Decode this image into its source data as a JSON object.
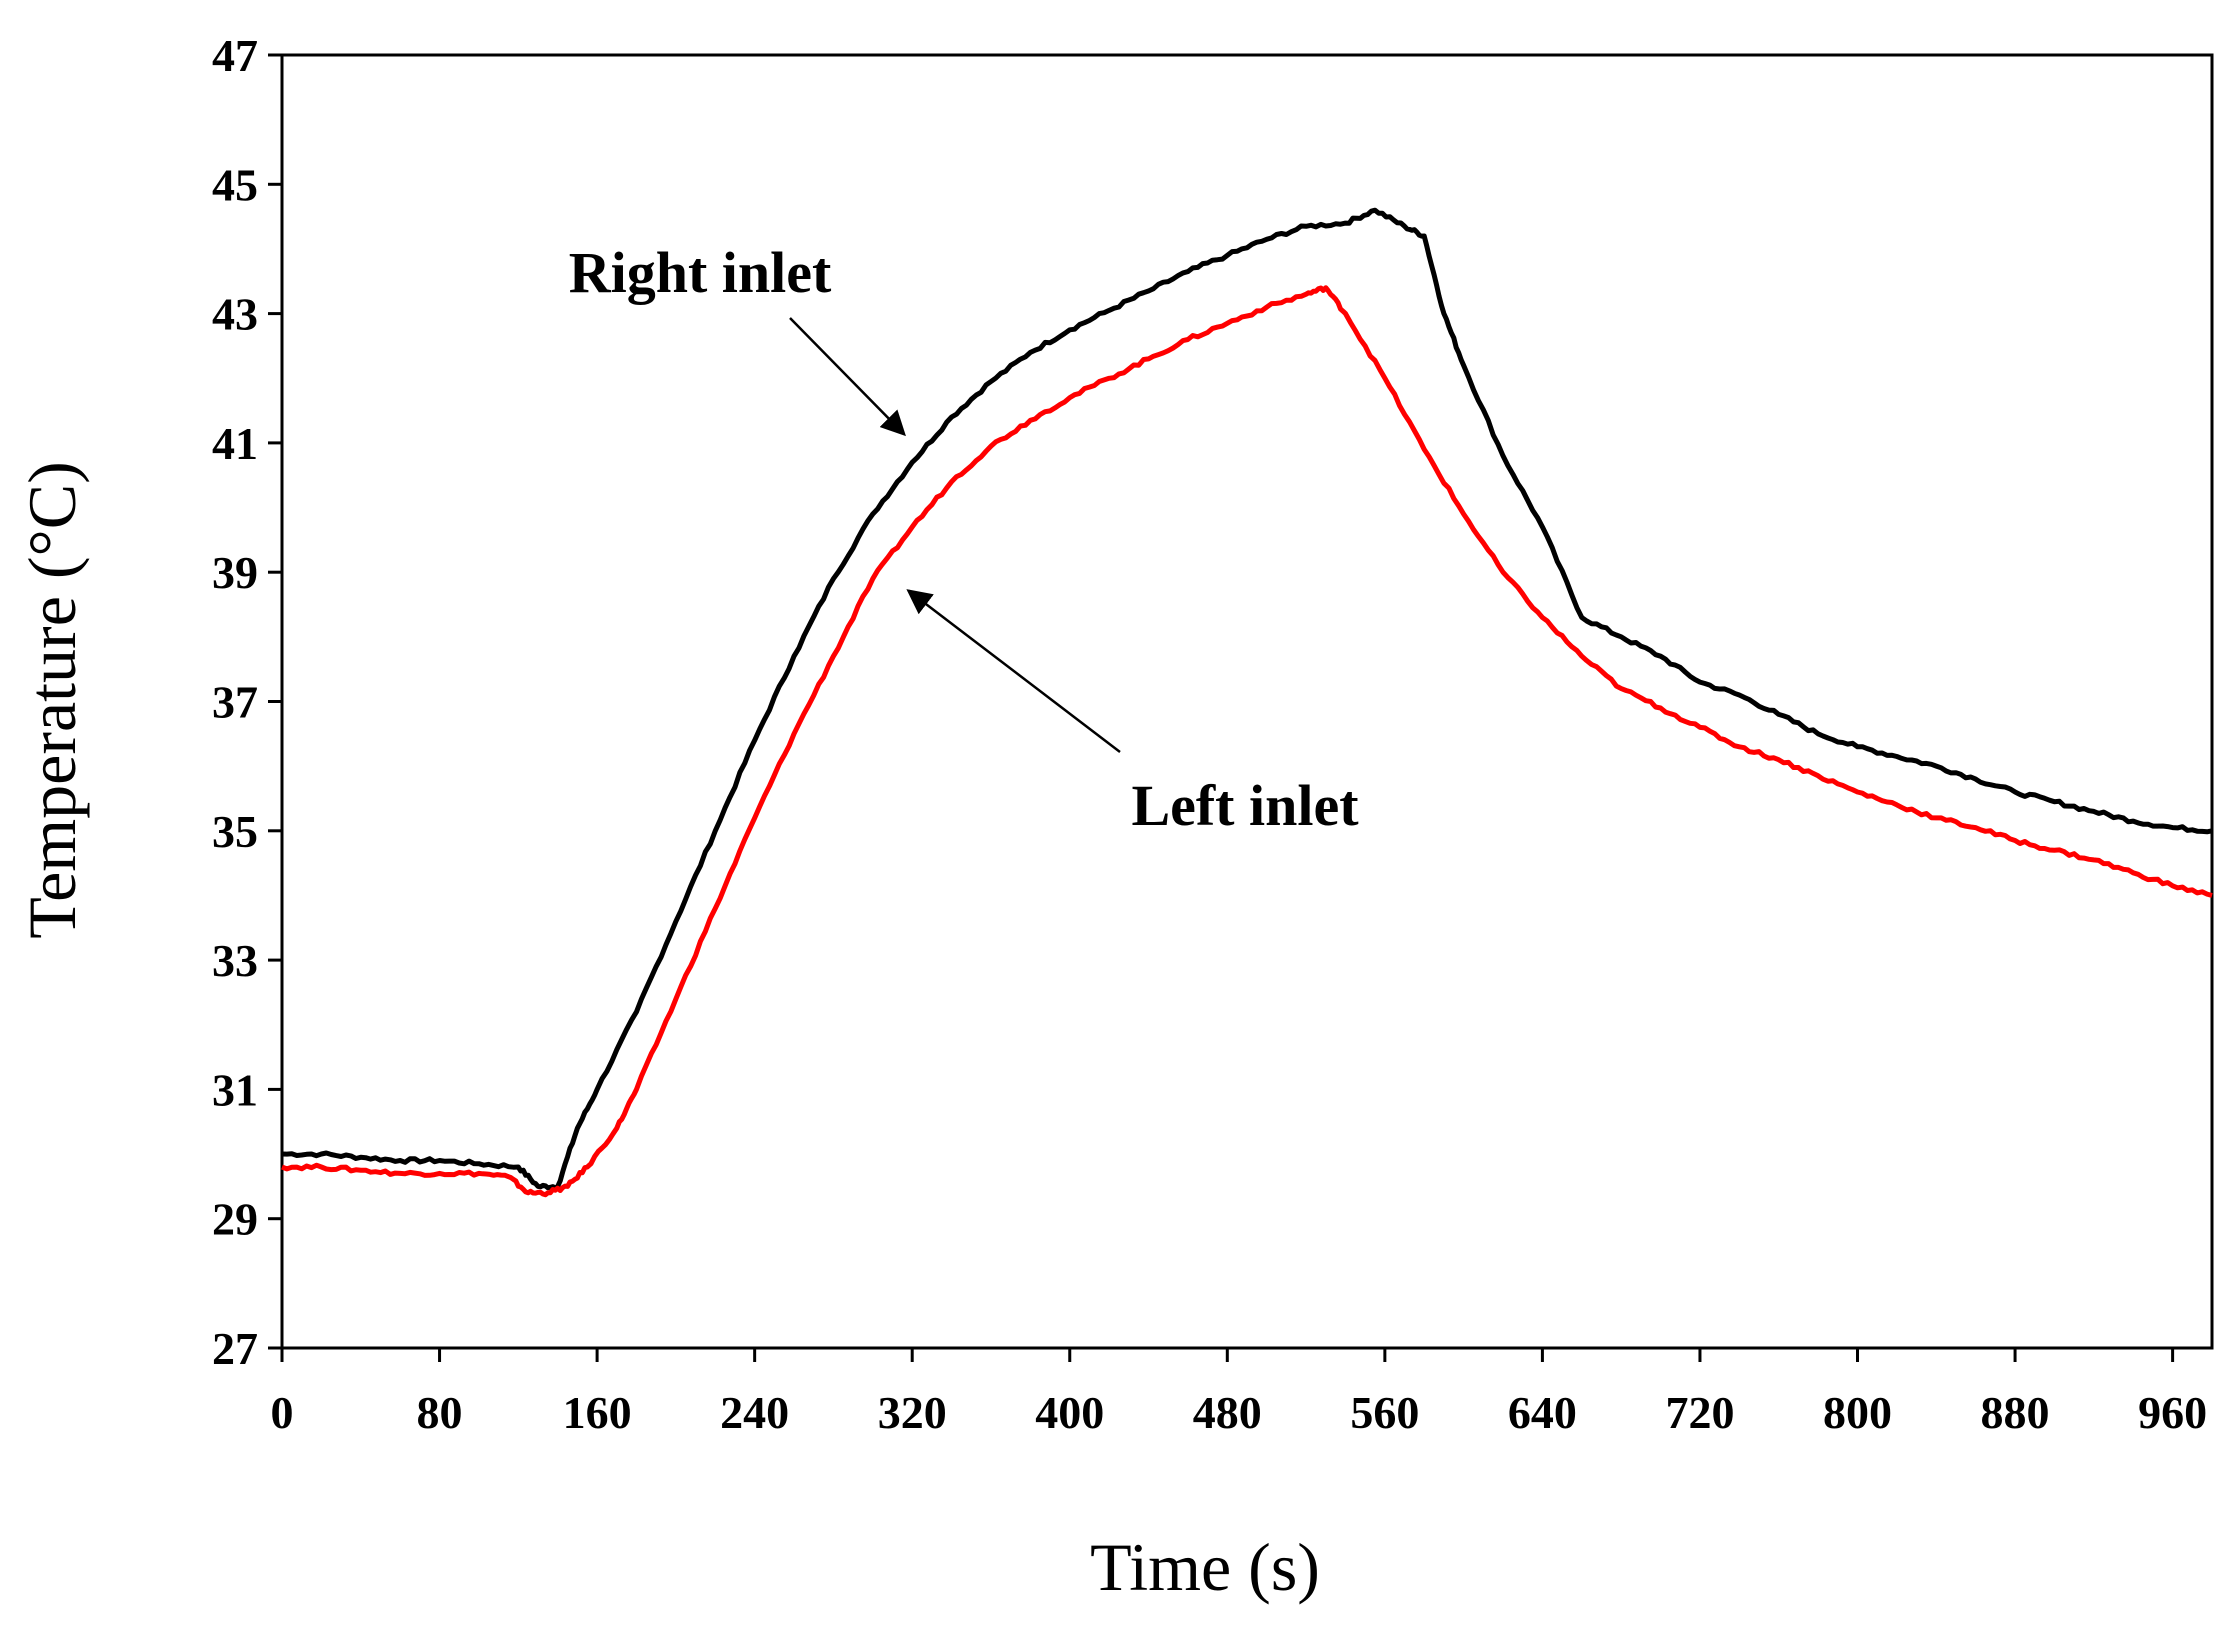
{
  "chart_data": {
    "type": "line",
    "xlabel": "Time (s)",
    "ylabel": "Temperature (°C)",
    "xlim": [
      0,
      980
    ],
    "ylim": [
      27,
      47
    ],
    "xticks": [
      0,
      80,
      160,
      240,
      320,
      400,
      480,
      560,
      640,
      720,
      800,
      880,
      960
    ],
    "yticks": [
      27,
      29,
      31,
      33,
      35,
      37,
      39,
      41,
      43,
      45,
      47
    ],
    "grid": false,
    "series": [
      {
        "name": "Right inlet",
        "color": "#000000",
        "x": [
          0,
          20,
          40,
          60,
          80,
          100,
          120,
          130,
          140,
          150,
          160,
          180,
          200,
          220,
          240,
          260,
          280,
          300,
          320,
          340,
          360,
          380,
          400,
          420,
          440,
          460,
          480,
          500,
          520,
          540,
          555,
          570,
          580,
          590,
          600,
          620,
          640,
          660,
          680,
          700,
          720,
          740,
          760,
          780,
          800,
          820,
          840,
          860,
          880,
          900,
          920,
          940,
          960,
          980
        ],
        "y": [
          30.0,
          30.0,
          29.95,
          29.9,
          29.9,
          29.85,
          29.8,
          29.5,
          29.5,
          30.4,
          31.0,
          32.2,
          33.6,
          35.0,
          36.4,
          37.7,
          38.9,
          39.9,
          40.7,
          41.4,
          41.95,
          42.4,
          42.75,
          43.05,
          43.35,
          43.65,
          43.9,
          44.15,
          44.35,
          44.4,
          44.6,
          44.35,
          44.2,
          43.0,
          42.2,
          40.8,
          39.7,
          38.3,
          38.0,
          37.7,
          37.3,
          37.1,
          36.8,
          36.5,
          36.3,
          36.15,
          36.0,
          35.8,
          35.6,
          35.45,
          35.3,
          35.15,
          35.05,
          35.0
        ]
      },
      {
        "name": "Left inlet",
        "color": "#ff0000",
        "x": [
          0,
          20,
          40,
          60,
          80,
          100,
          115,
          125,
          135,
          145,
          155,
          170,
          180,
          200,
          220,
          240,
          260,
          280,
          300,
          320,
          340,
          360,
          380,
          400,
          420,
          440,
          460,
          480,
          500,
          520,
          530,
          540,
          560,
          580,
          600,
          620,
          640,
          660,
          680,
          700,
          720,
          740,
          760,
          780,
          800,
          820,
          840,
          860,
          880,
          900,
          920,
          940,
          960,
          980
        ],
        "y": [
          29.8,
          29.8,
          29.75,
          29.7,
          29.7,
          29.7,
          29.65,
          29.4,
          29.4,
          29.5,
          29.8,
          30.4,
          31.0,
          32.4,
          33.8,
          35.2,
          36.5,
          37.7,
          38.9,
          39.7,
          40.4,
          40.95,
          41.35,
          41.7,
          42.0,
          42.3,
          42.6,
          42.85,
          43.1,
          43.3,
          43.4,
          43.0,
          42.0,
          40.9,
          39.9,
          39.0,
          38.3,
          37.7,
          37.2,
          36.9,
          36.6,
          36.3,
          36.1,
          35.85,
          35.6,
          35.4,
          35.2,
          35.05,
          34.85,
          34.7,
          34.55,
          34.35,
          34.15,
          34.0
        ]
      }
    ],
    "annotations": [
      {
        "text": "Right inlet",
        "target_series": "Right inlet",
        "target_x": 320,
        "target_y": 40.7
      },
      {
        "text": "Left inlet",
        "target_series": "Left inlet",
        "target_x": 315,
        "target_y": 38.9
      }
    ]
  }
}
